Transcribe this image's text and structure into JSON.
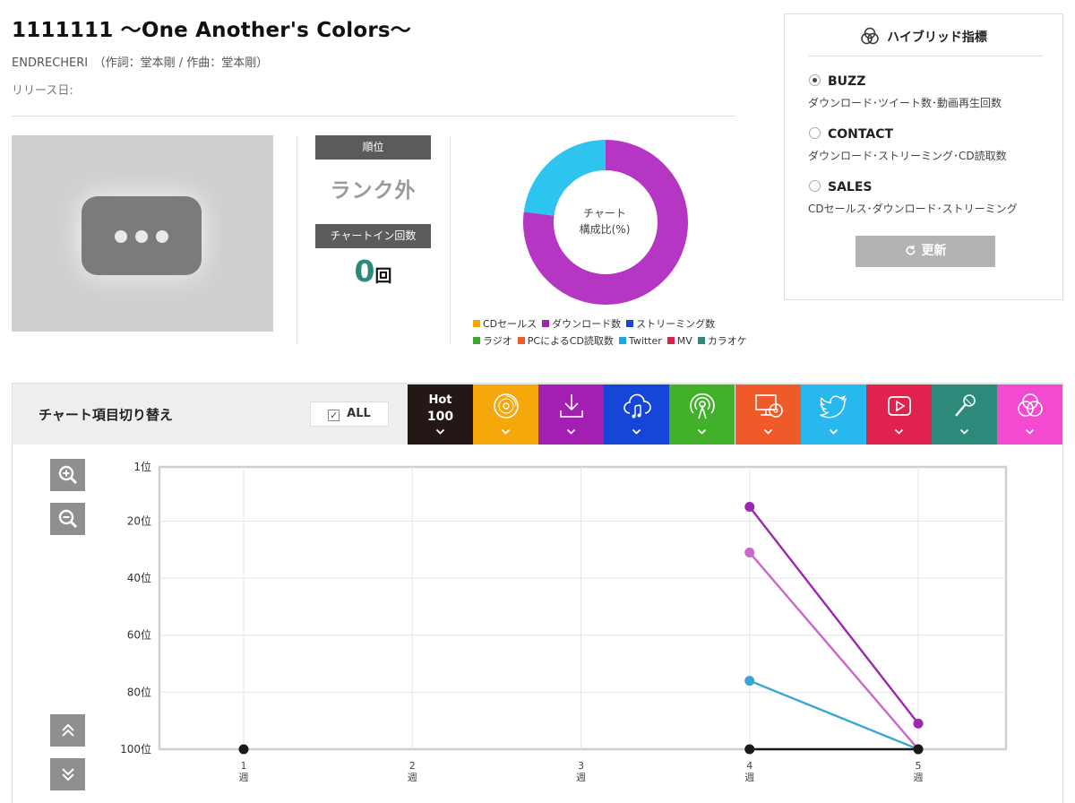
{
  "song": {
    "title": "1111111 〜One Another's Colors〜",
    "artist_line": "ENDRECHERI　（作詞：堂本剛 / 作曲：堂本剛）",
    "release_label": "リリース日:"
  },
  "thumbnail": {
    "icon": "more-dots-icon"
  },
  "rank": {
    "header": "順位",
    "value": "ランク外",
    "count_header": "チャートイン回数",
    "count_value": "0",
    "count_unit": "回"
  },
  "donut": {
    "label_line1": "チャート",
    "label_line2": "構成比(%)",
    "slices": [
      {
        "name": "ダウンロード数",
        "color": "#b536c2",
        "percent": 77
      },
      {
        "name": "Twitter",
        "color": "#2ec4f0",
        "percent": 23
      }
    ],
    "legend": [
      {
        "name": "CDセールス",
        "color": "#f5a800"
      },
      {
        "name": "ダウンロード数",
        "color": "#9b27af"
      },
      {
        "name": "ストリーミング数",
        "color": "#1848d6"
      },
      {
        "name": "ラジオ",
        "color": "#3aa82a"
      },
      {
        "name": "PCによるCD読取数",
        "color": "#f15a2a"
      },
      {
        "name": "Twitter",
        "color": "#1ba8e3"
      },
      {
        "name": "MV",
        "color": "#e0204a"
      },
      {
        "name": "カラオケ",
        "color": "#2b8a7c"
      }
    ]
  },
  "hybrid": {
    "title": "ハイブリッド指標",
    "icon": "venn-icon",
    "options": [
      {
        "label": "BUZZ",
        "desc": "ダウンロード･ツイート数･動画再生回数",
        "selected": true
      },
      {
        "label": "CONTACT",
        "desc": "ダウンロード･ストリーミング･CD読取数",
        "selected": false
      },
      {
        "label": "SALES",
        "desc": "CDセールス･ダウンロード･ストリーミング",
        "selected": false
      }
    ],
    "update_label": "更新"
  },
  "switcher": {
    "label": "チャート項目切り替え",
    "all_label": "ALL",
    "all_checked": true,
    "hot_line1": "Hot",
    "hot_line2": "100",
    "categories": [
      {
        "name": "hot100",
        "color": "#231815",
        "icon": "hot100"
      },
      {
        "name": "cd-sales",
        "color": "#f6a70c",
        "icon": "disc-icon"
      },
      {
        "name": "download",
        "color": "#a21fb2",
        "icon": "download-icon"
      },
      {
        "name": "streaming",
        "color": "#1447d8",
        "icon": "cloud-music-icon"
      },
      {
        "name": "radio",
        "color": "#42b12a",
        "icon": "radio-icon"
      },
      {
        "name": "pc-cd-read",
        "color": "#f05a28",
        "icon": "monitor-disc-icon"
      },
      {
        "name": "twitter",
        "color": "#27b8ee",
        "icon": "twitter-icon"
      },
      {
        "name": "mv",
        "color": "#e0224e",
        "icon": "play-icon"
      },
      {
        "name": "karaoke",
        "color": "#2b8a7a",
        "icon": "microphone-icon"
      },
      {
        "name": "hybrid",
        "color": "#f24ad0",
        "icon": "venn-icon"
      }
    ]
  },
  "chart_data": {
    "type": "line",
    "title": "",
    "xlabel": "",
    "ylabel": "",
    "x": [
      "1\n週",
      "2\n週",
      "3\n週",
      "4\n週",
      "5\n週"
    ],
    "ylim": [
      1,
      100
    ],
    "y_inverted": true,
    "yticks": [
      "1位",
      "20位",
      "40位",
      "60位",
      "80位",
      "100位"
    ],
    "grid": true,
    "series": [
      {
        "color": "#9b27af",
        "points": [
          [
            4,
            15
          ],
          [
            5,
            91
          ]
        ]
      },
      {
        "color": "#cc66cc",
        "points": [
          [
            4,
            31
          ],
          [
            5,
            100
          ]
        ]
      },
      {
        "color": "#3aa6d0",
        "points": [
          [
            4,
            76
          ],
          [
            5,
            100
          ]
        ]
      },
      {
        "color": "#1a1a1a",
        "points": [
          [
            1,
            100
          ],
          [
            4,
            100
          ],
          [
            5,
            100
          ]
        ],
        "markers_only_x": [
          1
        ]
      }
    ]
  }
}
